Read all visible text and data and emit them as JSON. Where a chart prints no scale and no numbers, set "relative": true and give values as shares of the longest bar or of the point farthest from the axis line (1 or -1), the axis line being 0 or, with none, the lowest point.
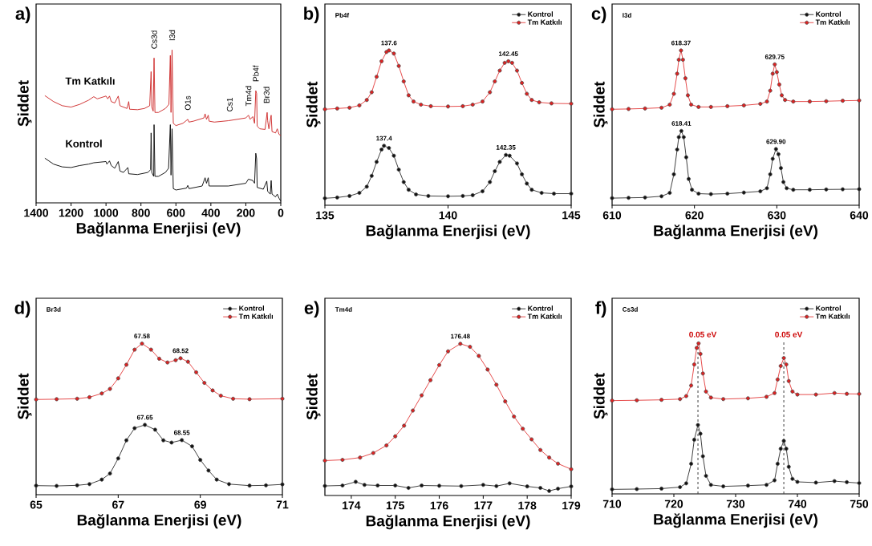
{
  "chart_data": [
    {
      "type": "line",
      "title": "a)",
      "xlabel": "Bağlanma Enerjisi (eV)",
      "ylabel": "Şiddet",
      "relative": true,
      "xlim": [
        1400,
        0
      ],
      "xticks": [
        1400,
        1200,
        1000,
        800,
        600,
        400,
        200,
        0
      ],
      "marker": "none",
      "annotations": [
        {
          "text": "Cs3d",
          "x": 725,
          "y": 0.947
        },
        {
          "text": "I3d",
          "x": 622,
          "y": 1.0
        },
        {
          "text": "O1s",
          "x": 532,
          "y": 0.546
        },
        {
          "text": "Cs1",
          "x": 292,
          "y": 0.537
        },
        {
          "text": "Tm4d",
          "x": 185,
          "y": 0.573
        },
        {
          "text": "Pb4f",
          "x": 143,
          "y": 0.733
        },
        {
          "text": "Br3d",
          "x": 82,
          "y": 0.591
        }
      ],
      "series": [
        {
          "name": "Kontrol",
          "color": "#000000",
          "x": [
            1350,
            1300,
            1250,
            1200,
            1150,
            1100,
            1070,
            1000,
            995,
            980,
            970,
            950,
            930,
            920,
            900,
            875,
            870,
            820,
            760,
            745,
            742,
            738,
            727,
            725,
            720,
            700,
            660,
            642,
            632,
            628,
            622,
            615,
            600,
            540,
            532,
            525,
            450,
            433,
            425,
            415,
            410,
            300,
            200,
            185,
            160,
            150,
            143,
            138,
            135,
            100,
            80,
            75,
            60,
            55,
            50,
            30,
            20,
            10,
            0
          ],
          "values": [
            0.292,
            0.253,
            0.235,
            0.231,
            0.244,
            0.253,
            0.262,
            0.27,
            0.253,
            0.274,
            0.244,
            0.226,
            0.27,
            0.208,
            0.199,
            0.231,
            0.19,
            0.185,
            0.199,
            0.217,
            0.457,
            0.199,
            0.173,
            0.511,
            0.173,
            0.173,
            0.199,
            0.226,
            0.511,
            0.181,
            0.484,
            0.093,
            0.084,
            0.096,
            0.114,
            0.093,
            0.11,
            0.164,
            0.128,
            0.164,
            0.11,
            0.11,
            0.128,
            0.155,
            0.146,
            0.128,
            0.324,
            0.288,
            0.101,
            0.089,
            0.142,
            0.075,
            0.057,
            0.146,
            0.057,
            0.039,
            0.057,
            0.03,
            0.012
          ]
        },
        {
          "name": "Tm Katkılı",
          "color": "#cc2222",
          "x": [
            1350,
            1300,
            1250,
            1200,
            1150,
            1100,
            1070,
            1050,
            1000,
            990,
            980,
            970,
            950,
            930,
            920,
            900,
            880,
            870,
            865,
            820,
            780,
            750,
            742,
            738,
            730,
            725,
            720,
            700,
            660,
            640,
            632,
            628,
            622,
            615,
            600,
            560,
            532,
            525,
            500,
            440,
            433,
            425,
            415,
            410,
            380,
            300,
            250,
            200,
            185,
            175,
            160,
            150,
            143,
            138,
            135,
            120,
            90,
            78,
            75,
            68,
            55,
            50,
            30,
            20,
            10,
            0
          ],
          "values": [
            0.701,
            0.662,
            0.635,
            0.626,
            0.644,
            0.671,
            0.694,
            0.68,
            0.698,
            0.68,
            0.698,
            0.662,
            0.653,
            0.698,
            0.635,
            0.626,
            0.617,
            0.662,
            0.612,
            0.609,
            0.617,
            0.635,
            0.858,
            0.626,
            0.6,
            0.947,
            0.591,
            0.591,
            0.617,
            0.644,
            0.964,
            0.591,
            1.0,
            0.52,
            0.505,
            0.52,
            0.546,
            0.528,
            0.534,
            0.555,
            0.582,
            0.546,
            0.573,
            0.534,
            0.528,
            0.537,
            0.546,
            0.555,
            0.573,
            0.546,
            0.564,
            0.52,
            0.733,
            0.715,
            0.502,
            0.484,
            0.48,
            0.591,
            0.537,
            0.484,
            0.573,
            0.466,
            0.457,
            0.484,
            0.448,
            0.44
          ]
        }
      ]
    },
    {
      "type": "line",
      "title": "b)",
      "xlabel": "Bağlanma Enerjisi (eV)",
      "ylabel": "Şiddet",
      "relative": true,
      "xlim": [
        135,
        145
      ],
      "xticks": [
        135,
        140,
        145
      ],
      "marker": "circle",
      "legend": "top right",
      "annotations": [
        "Pb4f",
        {
          "text": "137.6",
          "x": 137.6,
          "y": 1.0
        },
        {
          "text": "142.45",
          "x": 142.45,
          "y": 0.93
        },
        {
          "text": "137.4",
          "x": 137.4,
          "y": 0.384
        },
        {
          "text": "142.35",
          "x": 142.35,
          "y": 0.325
        }
      ],
      "series": [
        {
          "name": "Kontrol",
          "color": "#111111",
          "x": [
            135,
            135.5,
            136,
            136.4,
            136.7,
            136.9,
            137.1,
            137.3,
            137.4,
            137.6,
            137.8,
            138.0,
            138.2,
            138.4,
            138.7,
            139.2,
            140,
            140.6,
            141.0,
            141.4,
            141.7,
            141.9,
            142.1,
            142.35,
            142.5,
            142.8,
            143.0,
            143.2,
            143.4,
            143.8,
            144.3,
            145
          ],
          "values": [
            0.045,
            0.05,
            0.06,
            0.08,
            0.12,
            0.19,
            0.28,
            0.36,
            0.384,
            0.37,
            0.32,
            0.23,
            0.15,
            0.1,
            0.07,
            0.06,
            0.058,
            0.06,
            0.065,
            0.09,
            0.15,
            0.22,
            0.28,
            0.325,
            0.32,
            0.27,
            0.2,
            0.14,
            0.1,
            0.08,
            0.075,
            0.075
          ]
        },
        {
          "name": "Tm Katkılı",
          "color": "#e02020",
          "x": [
            135,
            135.5,
            136,
            136.4,
            136.7,
            136.9,
            137.1,
            137.3,
            137.5,
            137.6,
            137.8,
            138.0,
            138.2,
            138.4,
            138.6,
            138.9,
            139.3,
            140,
            140.6,
            141.0,
            141.4,
            141.7,
            141.9,
            142.1,
            142.3,
            142.45,
            142.6,
            142.8,
            143.0,
            143.2,
            143.4,
            143.7,
            144.2,
            145
          ],
          "values": [
            0.62,
            0.625,
            0.63,
            0.645,
            0.68,
            0.73,
            0.83,
            0.93,
            0.99,
            1.0,
            0.98,
            0.9,
            0.8,
            0.71,
            0.67,
            0.65,
            0.64,
            0.638,
            0.64,
            0.65,
            0.67,
            0.73,
            0.8,
            0.87,
            0.92,
            0.93,
            0.92,
            0.87,
            0.79,
            0.72,
            0.68,
            0.665,
            0.658,
            0.656
          ]
        }
      ]
    },
    {
      "type": "line",
      "title": "c)",
      "xlabel": "Bağlanma Enerjisi (eV)",
      "ylabel": "Şiddet",
      "relative": true,
      "xlim": [
        610,
        640
      ],
      "xticks": [
        610,
        620,
        630,
        640
      ],
      "marker": "circle",
      "legend": "top right",
      "annotations": [
        "I3d",
        {
          "text": "618.37",
          "x": 618.37,
          "y": 1.0
        },
        {
          "text": "629.75",
          "x": 629.75,
          "y": 0.91
        },
        {
          "text": "618.41",
          "x": 618.41,
          "y": 0.48
        },
        {
          "text": "629.90",
          "x": 629.9,
          "y": 0.363
        }
      ],
      "series": [
        {
          "name": "Kontrol",
          "color": "#111111",
          "x": [
            610,
            612,
            614,
            616,
            617,
            617.5,
            617.9,
            618.1,
            618.41,
            618.7,
            619.0,
            619.3,
            619.7,
            620.5,
            622,
            624,
            626,
            628,
            628.8,
            629.2,
            629.5,
            629.9,
            630.2,
            630.5,
            630.8,
            631.2,
            632,
            634,
            636,
            638,
            640
          ],
          "values": [
            0.046,
            0.048,
            0.05,
            0.058,
            0.08,
            0.2,
            0.36,
            0.44,
            0.48,
            0.44,
            0.31,
            0.17,
            0.1,
            0.075,
            0.072,
            0.075,
            0.082,
            0.09,
            0.11,
            0.2,
            0.3,
            0.363,
            0.33,
            0.24,
            0.15,
            0.11,
            0.1,
            0.1,
            0.102,
            0.103,
            0.104
          ]
        },
        {
          "name": "Tm Katkılı",
          "color": "#e02020",
          "x": [
            610,
            612,
            614,
            616,
            617,
            617.5,
            617.9,
            618.1,
            618.37,
            618.6,
            618.9,
            619.2,
            619.6,
            620.5,
            622,
            624,
            626,
            628,
            628.8,
            629.2,
            629.5,
            629.75,
            630.0,
            630.3,
            630.6,
            631,
            632,
            634,
            636,
            638,
            640
          ],
          "values": [
            0.62,
            0.622,
            0.625,
            0.63,
            0.65,
            0.72,
            0.85,
            0.94,
            1.0,
            0.94,
            0.82,
            0.71,
            0.65,
            0.635,
            0.635,
            0.64,
            0.645,
            0.655,
            0.67,
            0.74,
            0.85,
            0.91,
            0.86,
            0.78,
            0.71,
            0.68,
            0.67,
            0.67,
            0.672,
            0.675,
            0.677
          ]
        }
      ]
    },
    {
      "type": "line",
      "title": "d)",
      "xlabel": "Bağlanma Enerjisi (eV)",
      "ylabel": "Şiddet",
      "relative": true,
      "xlim": [
        65,
        71
      ],
      "xticks": [
        65,
        67,
        69,
        71
      ],
      "marker": "circle",
      "legend": "top right",
      "annotations": [
        "Br3d",
        {
          "text": "67.58",
          "x": 67.58,
          "y": 1.0
        },
        {
          "text": "68.52",
          "x": 68.52,
          "y": 0.903
        },
        {
          "text": "67.65",
          "x": 67.65,
          "y": 0.462
        },
        {
          "text": "68.55",
          "x": 68.55,
          "y": 0.361
        }
      ],
      "series": [
        {
          "name": "Kontrol",
          "color": "#111111",
          "x": [
            65,
            65.5,
            66,
            66.3,
            66.6,
            66.8,
            67.0,
            67.2,
            67.4,
            67.65,
            67.9,
            68.1,
            68.3,
            68.55,
            68.8,
            69.0,
            69.2,
            69.4,
            69.7,
            70.2,
            70.6,
            71
          ],
          "values": [
            0.06,
            0.058,
            0.062,
            0.07,
            0.1,
            0.14,
            0.24,
            0.36,
            0.44,
            0.462,
            0.43,
            0.36,
            0.345,
            0.361,
            0.32,
            0.23,
            0.16,
            0.1,
            0.07,
            0.06,
            0.062,
            0.068
          ]
        },
        {
          "name": "Tm Katkılı",
          "color": "#e02020",
          "x": [
            65,
            65.5,
            66,
            66.3,
            66.6,
            66.8,
            67.0,
            67.2,
            67.4,
            67.58,
            67.8,
            68.0,
            68.2,
            68.4,
            68.52,
            68.7,
            68.9,
            69.1,
            69.3,
            69.5,
            69.8,
            70.2,
            71
          ],
          "values": [
            0.63,
            0.632,
            0.635,
            0.645,
            0.67,
            0.7,
            0.77,
            0.86,
            0.96,
            1.0,
            0.96,
            0.9,
            0.875,
            0.89,
            0.903,
            0.88,
            0.81,
            0.74,
            0.69,
            0.655,
            0.635,
            0.632,
            0.635
          ]
        }
      ]
    },
    {
      "type": "line",
      "title": "e)",
      "xlabel": "Bağlanma Enerjisi (eV)",
      "ylabel": "Şiddet",
      "relative": true,
      "xlim": [
        173.4,
        179
      ],
      "xticks": [
        174,
        175,
        176,
        177,
        178,
        179
      ],
      "marker": "circle",
      "legend": "top right",
      "annotations": [
        "Tm4d",
        {
          "text": "176.48",
          "x": 176.48,
          "y": 1.0
        }
      ],
      "series": [
        {
          "name": "Kontrol",
          "color": "#111111",
          "x": [
            173.4,
            173.8,
            174.1,
            174.3,
            174.6,
            175.0,
            175.3,
            175.6,
            176.0,
            176.5,
            177.0,
            177.3,
            177.6,
            178.0,
            178.3,
            178.5,
            178.7,
            179
          ],
          "values": [
            0.063,
            0.066,
            0.09,
            0.07,
            0.066,
            0.066,
            0.05,
            0.066,
            0.064,
            0.062,
            0.07,
            0.062,
            0.08,
            0.06,
            0.05,
            0.03,
            0.045,
            0.06
          ]
        },
        {
          "name": "Tm Katkılı",
          "color": "#e02020",
          "x": [
            173.4,
            173.8,
            174.2,
            174.5,
            174.8,
            175.0,
            175.2,
            175.4,
            175.6,
            175.8,
            176.0,
            176.2,
            176.48,
            176.7,
            176.9,
            177.1,
            177.3,
            177.5,
            177.7,
            177.9,
            178.1,
            178.3,
            178.5,
            178.7,
            179
          ],
          "values": [
            0.23,
            0.235,
            0.25,
            0.28,
            0.33,
            0.39,
            0.46,
            0.56,
            0.66,
            0.76,
            0.86,
            0.95,
            1.0,
            0.98,
            0.92,
            0.83,
            0.73,
            0.62,
            0.52,
            0.44,
            0.37,
            0.3,
            0.25,
            0.21,
            0.173
          ]
        }
      ]
    },
    {
      "type": "line",
      "title": "f)",
      "xlabel": "Bağlanma Enerjisi (eV)",
      "ylabel": "Şiddet",
      "relative": true,
      "xlim": [
        710,
        750
      ],
      "xticks": [
        710,
        720,
        730,
        740,
        750
      ],
      "marker": "circle",
      "legend": "top right",
      "annotations": [
        "Cs3d"
      ],
      "ref_lines": [
        {
          "axis": "x",
          "value": 723.9,
          "label": "0.05 eV",
          "line_style": "dashed"
        },
        {
          "axis": "x",
          "value": 737.8,
          "label": "0.05 eV",
          "line_style": "dashed"
        }
      ],
      "series": [
        {
          "name": "Kontrol",
          "color": "#111111",
          "x": [
            710,
            714,
            718,
            721,
            722,
            722.8,
            723.3,
            723.9,
            724.3,
            724.7,
            725.2,
            726,
            728,
            732,
            735,
            736.3,
            736.8,
            737.3,
            737.8,
            738.2,
            738.6,
            739.2,
            740,
            743,
            746,
            748,
            750
          ],
          "values": [
            0.03,
            0.032,
            0.035,
            0.045,
            0.07,
            0.2,
            0.36,
            0.458,
            0.4,
            0.25,
            0.12,
            0.06,
            0.05,
            0.055,
            0.06,
            0.09,
            0.2,
            0.3,
            0.352,
            0.3,
            0.18,
            0.1,
            0.08,
            0.075,
            0.085,
            0.078,
            0.072
          ]
        },
        {
          "name": "Tm Katkılı",
          "color": "#e02020",
          "x": [
            710,
            714,
            718,
            721,
            722,
            722.8,
            723.3,
            723.7,
            724,
            724.3,
            724.7,
            725.2,
            726,
            728,
            732,
            735,
            736.3,
            736.8,
            737.3,
            737.8,
            738.2,
            738.6,
            739.2,
            740,
            743,
            746,
            748,
            750
          ],
          "values": [
            0.62,
            0.622,
            0.625,
            0.63,
            0.65,
            0.72,
            0.86,
            0.97,
            1.0,
            0.93,
            0.8,
            0.68,
            0.64,
            0.63,
            0.635,
            0.645,
            0.67,
            0.76,
            0.85,
            0.903,
            0.86,
            0.75,
            0.68,
            0.66,
            0.66,
            0.67,
            0.665,
            0.664
          ]
        }
      ]
    }
  ]
}
